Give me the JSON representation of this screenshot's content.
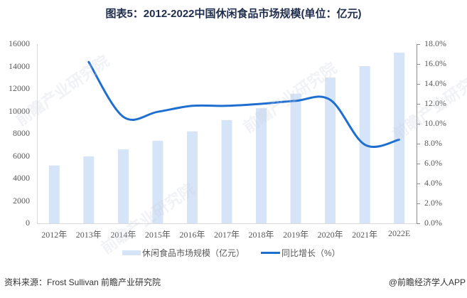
{
  "title": "图表5：2012-2022中国休闲食品市场规模(单位：亿元)",
  "chart_data": {
    "type": "bar+line",
    "title": "图表5：2012-2022中国休闲食品市场规模(单位：亿元)",
    "categories": [
      "2012年",
      "2013年",
      "2014年",
      "2015年",
      "2016年",
      "2017年",
      "2018年",
      "2019年",
      "2020年",
      "2021年",
      "2022E"
    ],
    "series": [
      {
        "name": "休闲食品市场规模（亿元）",
        "type": "bar",
        "axis": "left",
        "color": "#d6e4f8",
        "values": [
          5160,
          5980,
          6610,
          7370,
          8210,
          9220,
          10280,
          11570,
          13010,
          14030,
          15240
        ]
      },
      {
        "name": "同比增长（%）",
        "type": "line",
        "axis": "right",
        "color": "#1f6fd1",
        "values": [
          null,
          16.2,
          10.7,
          11.2,
          11.8,
          11.8,
          12.0,
          12.3,
          12.4,
          7.9,
          8.4
        ]
      }
    ],
    "y_left": {
      "min": 0,
      "max": 16000,
      "ticks": [
        "0",
        "2000",
        "4000",
        "6000",
        "8000",
        "10000",
        "12000",
        "14000",
        "16000"
      ]
    },
    "y_right": {
      "min": 0,
      "max": 18,
      "ticks": [
        "0.0%",
        "2.0%",
        "4.0%",
        "6.0%",
        "8.0%",
        "10.0%",
        "12.0%",
        "14.0%",
        "16.0%",
        "18.0%"
      ]
    },
    "xlabel": "",
    "ylabel": "",
    "grid": false,
    "legend_position": "bottom"
  },
  "legend": {
    "bar_label": "休闲食品市场规模（亿元）",
    "line_label": "同比增长（%）"
  },
  "footer": {
    "source": "资料来源：Frost Sullivan 前瞻产业研究院",
    "credit": "@前瞻经济学人APP"
  },
  "watermark": {
    "text": "前瞻产业研究院"
  }
}
